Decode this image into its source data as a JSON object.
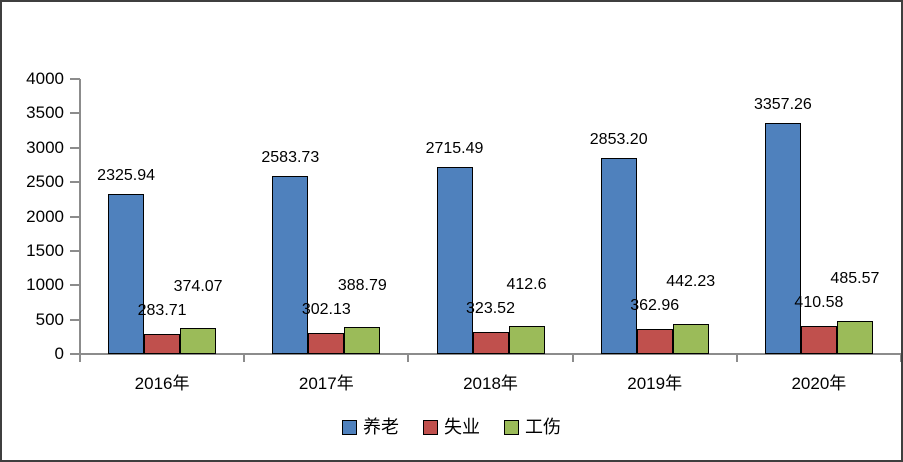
{
  "chart_data": {
    "type": "bar",
    "title": "",
    "xlabel": "",
    "ylabel": "",
    "categories": [
      "2016年",
      "2017年",
      "2018年",
      "2019年",
      "2020年"
    ],
    "series": [
      {
        "name": "养老",
        "color": "#4F81BD",
        "values": [
          2325.94,
          2583.73,
          2715.49,
          2853.2,
          3357.26
        ],
        "labels": [
          "2325.94",
          "2583.73",
          "2715.49",
          "2853.20",
          "3357.26"
        ]
      },
      {
        "name": "失业",
        "color": "#C0504D",
        "values": [
          283.71,
          302.13,
          323.52,
          362.96,
          410.58
        ],
        "labels": [
          "283.71",
          "302.13",
          "323.52",
          "362.96",
          "410.58"
        ]
      },
      {
        "name": "工伤",
        "color": "#9BBB59",
        "values": [
          374.07,
          388.79,
          412.6,
          442.23,
          485.57
        ],
        "labels": [
          "374.07",
          "388.79",
          "412.6",
          "442.23",
          "485.57"
        ]
      }
    ],
    "y_axis": {
      "min": 0,
      "max": 4000,
      "step": 500,
      "tick_labels": [
        "0",
        "500",
        "1000",
        "1500",
        "2000",
        "2500",
        "3000",
        "3500",
        "4000"
      ]
    },
    "legend": {
      "position": "bottom",
      "items": [
        "养老",
        "失业",
        "工伤"
      ]
    },
    "grid": false,
    "data_labels_shown": true,
    "colors": {
      "bar_border": "#000000",
      "axis": "#8C8C8C",
      "text": "#000000",
      "frame_border": "#3F3F3F",
      "background": "#FFFFFF"
    }
  }
}
